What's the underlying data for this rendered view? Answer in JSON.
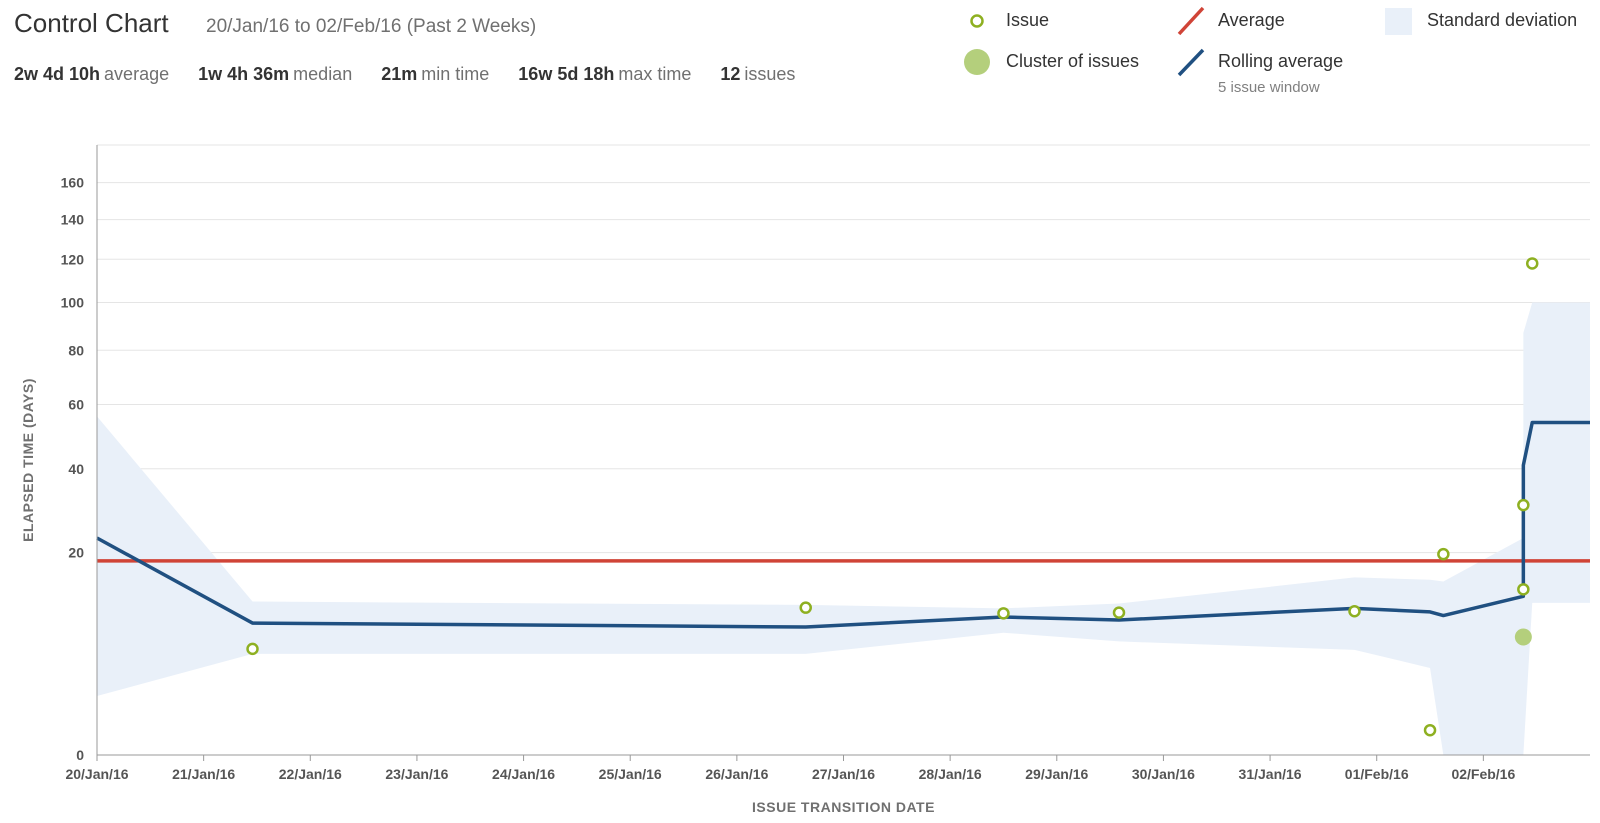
{
  "header": {
    "title": "Control Chart",
    "subtitle": "20/Jan/16 to 02/Feb/16 (Past 2 Weeks)"
  },
  "stats": [
    {
      "value": "2w 4d 10h",
      "label": "average"
    },
    {
      "value": "1w 4h 36m",
      "label": "median"
    },
    {
      "value": "21m",
      "label": "min time"
    },
    {
      "value": "16w 5d 18h",
      "label": "max time"
    },
    {
      "value": "12",
      "label": "issues"
    }
  ],
  "legend": {
    "issue": "Issue",
    "cluster": "Cluster of issues",
    "average": "Average",
    "rolling": "Rolling average",
    "rolling_sub": "5 issue window",
    "stddev": "Standard deviation"
  },
  "colors": {
    "issue": "#8eb021",
    "cluster": "#b4cf7c",
    "average": "#d04437",
    "rolling": "#205081",
    "stddev": "#e9f0f9",
    "grid": "#e5e5e5"
  },
  "chart_data": {
    "type": "scatter",
    "xlabel": "ISSUE TRANSITION DATE",
    "ylabel": "ELAPSED TIME (DAYS)",
    "y_scale": "sqrt",
    "ylim": [
      0,
      170
    ],
    "y_ticks": [
      0,
      20,
      40,
      60,
      80,
      100,
      120,
      140,
      160
    ],
    "xlim": [
      "2016-01-20",
      "2016-02-03T00:00"
    ],
    "x_ticks": [
      "20/Jan/16",
      "21/Jan/16",
      "22/Jan/16",
      "23/Jan/16",
      "24/Jan/16",
      "25/Jan/16",
      "26/Jan/16",
      "27/Jan/16",
      "28/Jan/16",
      "29/Jan/16",
      "30/Jan/16",
      "31/Jan/16",
      "01/Feb/16",
      "02/Feb/16"
    ],
    "average": 18.4,
    "issues": [
      {
        "x": "2016-01-21T11:00",
        "y": 5.5
      },
      {
        "x": "2016-01-26T15:30",
        "y": 10.6
      },
      {
        "x": "2016-01-28T12:00",
        "y": 9.8
      },
      {
        "x": "2016-01-29T14:00",
        "y": 9.9
      },
      {
        "x": "2016-01-31T19:00",
        "y": 10.1
      },
      {
        "x": "2016-02-01T12:00",
        "y": 0.3
      },
      {
        "x": "2016-02-01T15:00",
        "y": 19.7
      },
      {
        "x": "2016-02-02T09:00",
        "y": 13.4
      },
      {
        "x": "2016-02-02T09:00",
        "y": 30.5
      },
      {
        "x": "2016-02-02T11:00",
        "y": 118
      }
    ],
    "clusters": [
      {
        "x": "2016-02-02T09:00",
        "y": 6.8
      }
    ],
    "rolling_average": [
      {
        "x": "2016-01-20T00:00",
        "y": 23
      },
      {
        "x": "2016-01-21T11:00",
        "y": 8.5
      },
      {
        "x": "2016-01-26T15:30",
        "y": 8.0
      },
      {
        "x": "2016-01-28T12:00",
        "y": 9.3
      },
      {
        "x": "2016-01-29T14:00",
        "y": 8.9
      },
      {
        "x": "2016-01-31T19:00",
        "y": 10.5
      },
      {
        "x": "2016-02-01T12:00",
        "y": 10.0
      },
      {
        "x": "2016-02-01T15:00",
        "y": 9.5
      },
      {
        "x": "2016-02-02T09:00",
        "y": 12.3
      },
      {
        "x": "2016-02-02T09:00",
        "y": 41
      },
      {
        "x": "2016-02-02T11:00",
        "y": 54
      },
      {
        "x": "2016-02-03T00:00",
        "y": 54
      }
    ],
    "std_upper": [
      {
        "x": "2016-01-20T00:00",
        "y": 56
      },
      {
        "x": "2016-01-21T11:00",
        "y": 11.5
      },
      {
        "x": "2016-01-26T15:30",
        "y": 11.0
      },
      {
        "x": "2016-01-28T12:00",
        "y": 10.5
      },
      {
        "x": "2016-01-29T14:00",
        "y": 11.2
      },
      {
        "x": "2016-01-31T19:00",
        "y": 15.4
      },
      {
        "x": "2016-02-01T12:00",
        "y": 15.0
      },
      {
        "x": "2016-02-01T15:00",
        "y": 14.7
      },
      {
        "x": "2016-02-02T09:00",
        "y": 23
      },
      {
        "x": "2016-02-02T09:00",
        "y": 87
      },
      {
        "x": "2016-02-02T11:00",
        "y": 100
      },
      {
        "x": "2016-02-03T00:00",
        "y": 100
      }
    ],
    "std_lower": [
      {
        "x": "2016-01-20T00:00",
        "y": 1.7
      },
      {
        "x": "2016-01-21T11:00",
        "y": 5.0
      },
      {
        "x": "2016-01-26T15:30",
        "y": 5.0
      },
      {
        "x": "2016-01-28T12:00",
        "y": 7.3
      },
      {
        "x": "2016-01-29T14:00",
        "y": 6.3
      },
      {
        "x": "2016-01-31T19:00",
        "y": 5.4
      },
      {
        "x": "2016-02-01T12:00",
        "y": 3.7
      },
      {
        "x": "2016-02-01T15:00",
        "y": 0
      },
      {
        "x": "2016-02-02T09:00",
        "y": 0
      },
      {
        "x": "2016-02-02T09:00",
        "y": 0
      },
      {
        "x": "2016-02-02T11:00",
        "y": 11.3
      },
      {
        "x": "2016-02-03T00:00",
        "y": 11.3
      }
    ]
  }
}
